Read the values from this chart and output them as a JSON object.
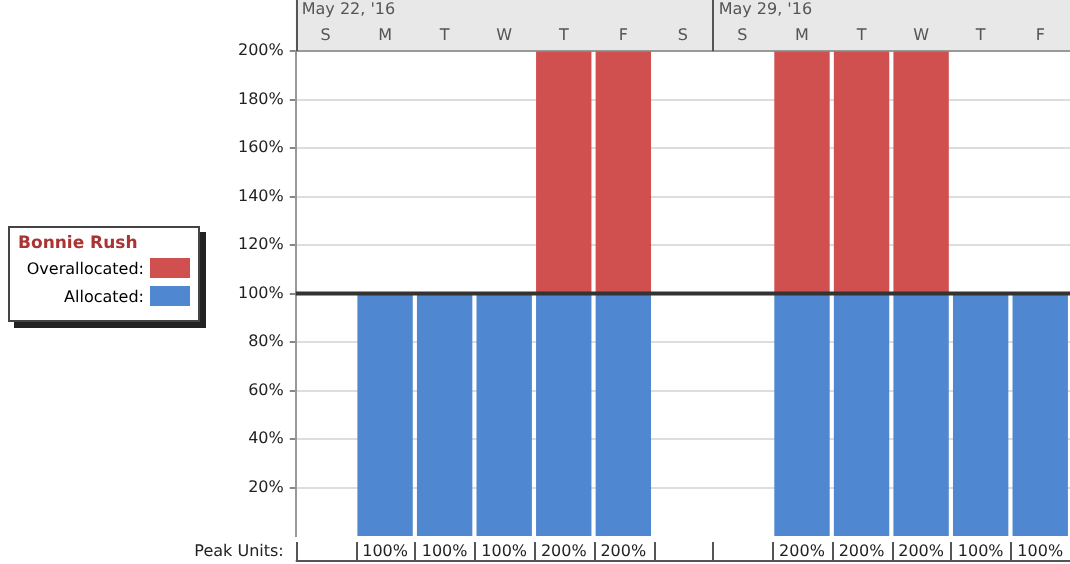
{
  "chart_data": {
    "type": "bar",
    "stacked": true,
    "legend_title": "Bonnie Rush",
    "legend": "left",
    "grid": "y",
    "categories": [
      "S",
      "M",
      "T",
      "W",
      "T",
      "F",
      "S",
      "S",
      "M",
      "T",
      "W",
      "T",
      "F"
    ],
    "series": [
      {
        "name": "Allocated:",
        "color": "#4f88d0",
        "values": [
          null,
          100,
          100,
          100,
          100,
          100,
          null,
          null,
          100,
          100,
          100,
          100,
          100
        ]
      },
      {
        "name": "Overallocated:",
        "color": "#d05050",
        "values": [
          null,
          null,
          null,
          null,
          100,
          100,
          null,
          null,
          100,
          100,
          100,
          null,
          null
        ]
      }
    ],
    "ylim": [
      0,
      200
    ],
    "yticks": [
      {
        "value": 20,
        "label": "20%"
      },
      {
        "value": 40,
        "label": "40%"
      },
      {
        "value": 60,
        "label": "60%"
      },
      {
        "value": 80,
        "label": "80%"
      },
      {
        "value": 100,
        "label": "100%"
      },
      {
        "value": 120,
        "label": "120%"
      },
      {
        "value": 140,
        "label": "140%"
      },
      {
        "value": 160,
        "label": "160%"
      },
      {
        "value": 180,
        "label": "180%"
      },
      {
        "value": 200,
        "label": "200%"
      }
    ],
    "ref_lines": [
      {
        "axis": "y",
        "value": 100,
        "color": "#333333"
      }
    ],
    "totals": [
      null,
      "100%",
      "100%",
      "100%",
      "200%",
      "200%",
      null,
      null,
      "200%",
      "200%",
      "200%",
      "100%",
      "100%"
    ],
    "annotations": [
      "Peak Units:",
      "May 22, '16",
      "May 29, '16"
    ]
  }
}
